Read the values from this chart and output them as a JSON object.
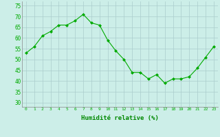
{
  "x": [
    0,
    1,
    2,
    3,
    4,
    5,
    6,
    7,
    8,
    9,
    10,
    11,
    12,
    13,
    14,
    15,
    16,
    17,
    18,
    19,
    20,
    21,
    22,
    23
  ],
  "y": [
    53,
    56,
    61,
    63,
    66,
    66,
    68,
    71,
    67,
    66,
    59,
    54,
    50,
    44,
    44,
    41,
    43,
    39,
    41,
    41,
    42,
    46,
    51,
    56
  ],
  "line_color": "#00aa00",
  "marker_color": "#00aa00",
  "bg_color": "#cceee8",
  "grid_color": "#aacccc",
  "xlabel": "Humidité relative (%)",
  "xlabel_color": "#008800",
  "tick_color": "#00aa00",
  "ylim": [
    28,
    77
  ],
  "yticks": [
    30,
    35,
    40,
    45,
    50,
    55,
    60,
    65,
    70,
    75
  ],
  "xlim": [
    -0.5,
    23.5
  ]
}
